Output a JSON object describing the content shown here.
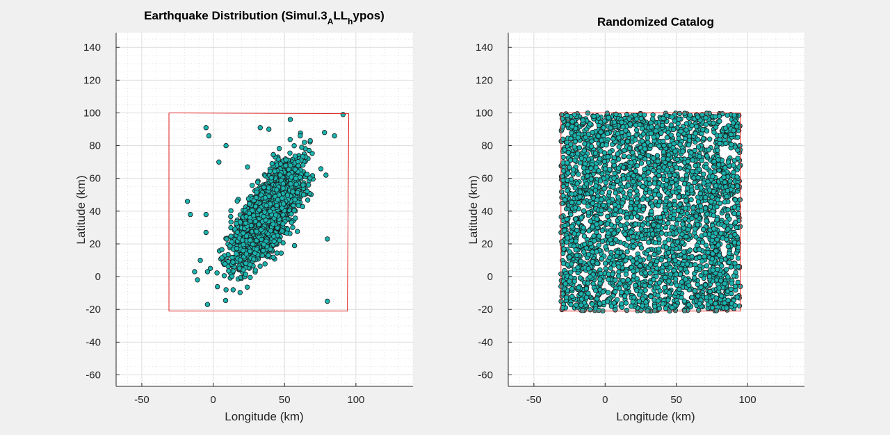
{
  "figure": {
    "background": "#f0f0f0",
    "axes_background": "#ffffff",
    "marker_fill": "#1ab3ae",
    "marker_edge": "#1a1a1a",
    "boundary_color": "#e02020"
  },
  "chart_data": [
    {
      "type": "scatter",
      "title": "Earthquake Distribution (Simul.3",
      "title_parts": {
        "main": "Earthquake Distribution (Simul.3",
        "sub1": "A",
        "mid": "LL",
        "sub2": "h",
        "end": "ypos)"
      },
      "xlabel": "Longitude (km)",
      "ylabel": "Latitude (km)",
      "xlim": [
        -68,
        140
      ],
      "ylim": [
        -67,
        149
      ],
      "xticks": [
        -50,
        0,
        50,
        100
      ],
      "yticks": [
        -60,
        -40,
        -20,
        0,
        20,
        40,
        60,
        80,
        100,
        120,
        140
      ],
      "grid": true,
      "minor_grid": true,
      "boundary": [
        [
          -31,
          100
        ],
        [
          95,
          99.5
        ],
        [
          94,
          -21
        ],
        [
          -31,
          -21
        ]
      ],
      "distribution": {
        "kind": "correlated cluster",
        "count": 3000,
        "mean": [
          38,
          38
        ],
        "std": [
          11,
          14
        ],
        "correlation": 0.72
      },
      "outliers": [
        [
          -5,
          91
        ],
        [
          -3,
          86
        ],
        [
          9,
          80
        ],
        [
          4,
          70
        ],
        [
          91,
          99
        ],
        [
          78,
          88
        ],
        [
          85,
          86
        ],
        [
          68,
          83
        ],
        [
          61,
          86
        ],
        [
          79,
          62
        ],
        [
          -18,
          46
        ],
        [
          -16,
          38
        ],
        [
          -5,
          38
        ],
        [
          -5,
          27
        ],
        [
          -13,
          3
        ],
        [
          -9,
          10
        ],
        [
          -4,
          3
        ],
        [
          -4,
          -17
        ],
        [
          80,
          23
        ],
        [
          80,
          -15
        ],
        [
          33,
          91
        ],
        [
          39,
          90
        ],
        [
          54,
          96
        ],
        [
          62,
          79
        ],
        [
          24,
          67
        ],
        [
          -11,
          -2
        ],
        [
          -2,
          5
        ],
        [
          9,
          -8
        ],
        [
          14,
          -8
        ]
      ]
    },
    {
      "type": "scatter",
      "title": "Randomized Catalog",
      "xlabel": "Longitude (km)",
      "ylabel": "Latitude (km)",
      "xlim": [
        -68,
        140
      ],
      "ylim": [
        -67,
        149
      ],
      "xticks": [
        -50,
        0,
        50,
        100
      ],
      "yticks": [
        -60,
        -40,
        -20,
        0,
        20,
        40,
        60,
        80,
        100,
        120,
        140
      ],
      "grid": true,
      "minor_grid": true,
      "boundary": [
        [
          -31,
          100
        ],
        [
          95,
          100
        ],
        [
          95,
          -21
        ],
        [
          -31,
          -21
        ]
      ],
      "distribution": {
        "kind": "uniform",
        "count": 3000,
        "x_range": [
          -31,
          95
        ],
        "y_range": [
          -21,
          100
        ]
      }
    }
  ]
}
